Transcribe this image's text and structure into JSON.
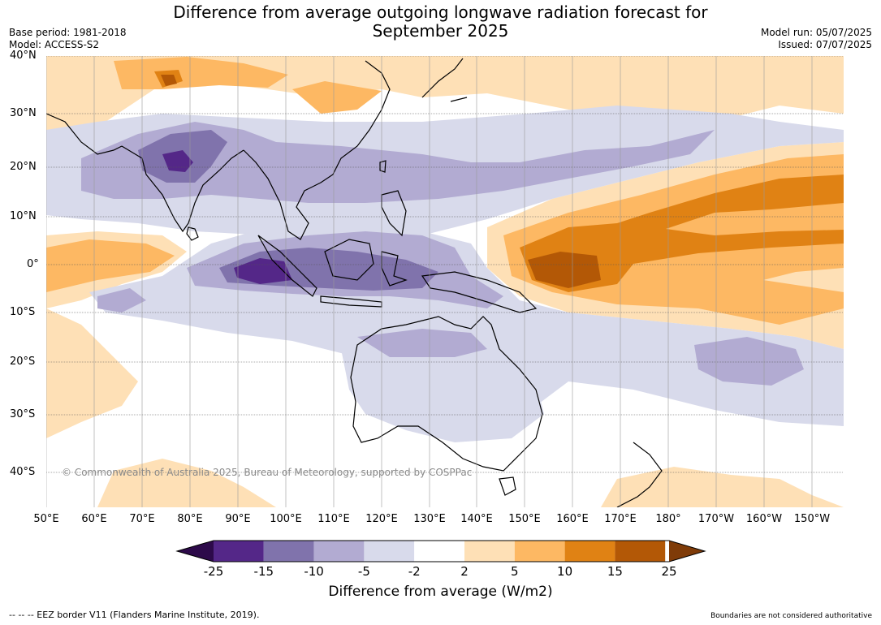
{
  "title": {
    "line1": "Difference from average outgoing longwave radiation forecast for",
    "line2": "September 2025"
  },
  "meta": {
    "base_period": "Base period: 1981-2018",
    "model": "Model: ACCESS-S2",
    "model_run": "Model run: 05/07/2025",
    "issued": "Issued: 07/07/2025"
  },
  "map": {
    "lat_labels": [
      "40°N",
      "30°N",
      "20°N",
      "10°N",
      "0°",
      "10°S",
      "20°S",
      "30°S",
      "40°S"
    ],
    "lon_labels": [
      "50°E",
      "60°E",
      "70°E",
      "80°E",
      "90°E",
      "100°E",
      "110°E",
      "120°E",
      "130°E",
      "140°E",
      "150°E",
      "160°E",
      "170°E",
      "180°",
      "170°W",
      "160°W",
      "150°W"
    ],
    "copyright": "© Commonwealth of Australia 2025, Bureau of Meteorology, supported by COSPPac"
  },
  "colorbar": {
    "ticks": [
      "-25",
      "-15",
      "-10",
      "-5",
      "-2",
      "2",
      "5",
      "10",
      "15",
      "25"
    ],
    "colors": [
      "#2d0a4a",
      "#542788",
      "#8073ac",
      "#b2abd2",
      "#d8daeb",
      "#ffffff",
      "#fee0b6",
      "#fdb863",
      "#e08214",
      "#b35806",
      "#7f3b08"
    ],
    "label": "Difference from average (W/m2)"
  },
  "footer": {
    "eez": "--  --  -- EEZ border V11 (Flanders Marine Institute, 2019).",
    "disclaimer": "Boundaries are not considered authoritative"
  }
}
